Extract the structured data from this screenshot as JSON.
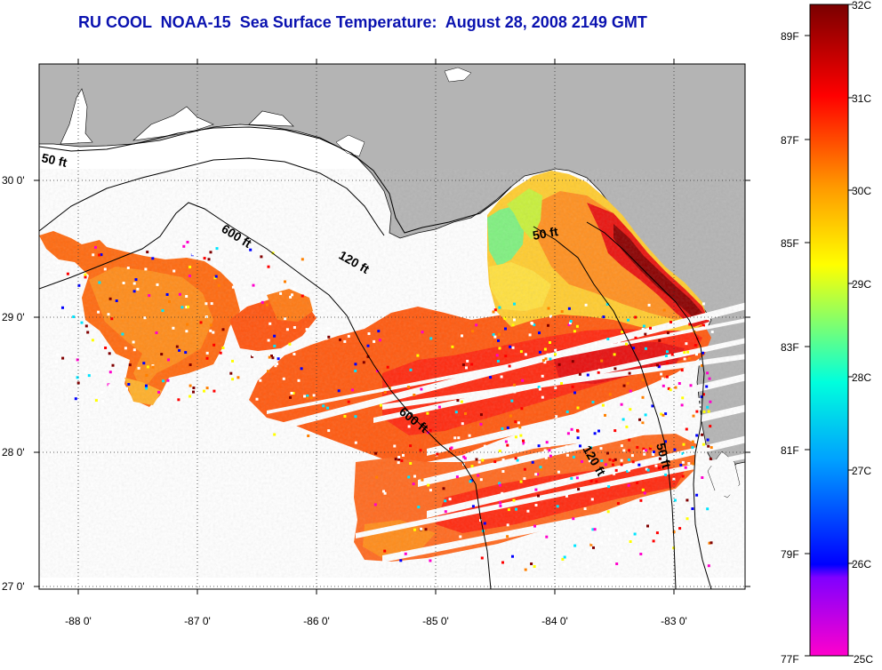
{
  "title": "RU COOL  NOAA-15  Sea Surface Temperature:  August 28, 2008 2149 GMT",
  "map": {
    "lat_ticks": [
      "27 0'",
      "28 0'",
      "29 0'",
      "30 0'"
    ],
    "lon_ticks": [
      "-88 0'",
      "-87 0'",
      "-86 0'",
      "-85 0'",
      "-84 0'",
      "-83 0'"
    ],
    "land_color": "#b4b4b4",
    "water_color": "#ffffff",
    "contour_labels": [
      "50 ft",
      "600 ft",
      "120 ft",
      "50 ft",
      "600 ft",
      "120 ft",
      "50 ft"
    ]
  },
  "colorbar": {
    "celsius_labels": [
      "32C",
      "31C",
      "30C",
      "29C",
      "28C",
      "27C",
      "26C",
      "25C"
    ],
    "fahrenheit_labels": [
      "89F",
      "87F",
      "85F",
      "83F",
      "81F",
      "79F",
      "77F"
    ],
    "colors": [
      "#ff00cc",
      "#0000ff",
      "#00e5ff",
      "#ffff00",
      "#ff8000",
      "#ff0000",
      "#800000"
    ]
  }
}
